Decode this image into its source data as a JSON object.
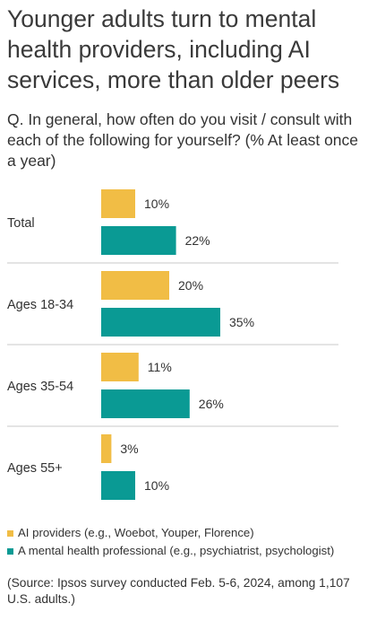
{
  "title": "Younger adults turn to mental health providers, including AI services, more than older peers",
  "subtitle": "Q. In general, how often do you visit / consult with each of the following for yourself? (% At least once a year)",
  "colors": {
    "ai": "#f1bd45",
    "mental": "#0a9a94"
  },
  "chart_data": {
    "type": "bar",
    "orientation": "horizontal",
    "categories": [
      "Total",
      "Ages 18-34",
      "Ages 35-54",
      "Ages 55+"
    ],
    "series": [
      {
        "name": "AI providers (e.g., Woebot, Youper, Florence)",
        "values": [
          10,
          20,
          11,
          3
        ],
        "labels": [
          "10%",
          "20%",
          "11%",
          "3%"
        ]
      },
      {
        "name": "A mental health professional (e.g., psychiatrist, psychologist)",
        "values": [
          22,
          35,
          26,
          10
        ],
        "labels": [
          "22%",
          "35%",
          "26%",
          "10%"
        ]
      }
    ],
    "unit": "%",
    "legend": "bottom"
  },
  "source": "(Source: Ipsos survey conducted Feb. 5-6, 2024, among 1,107 U.S. adults.)"
}
